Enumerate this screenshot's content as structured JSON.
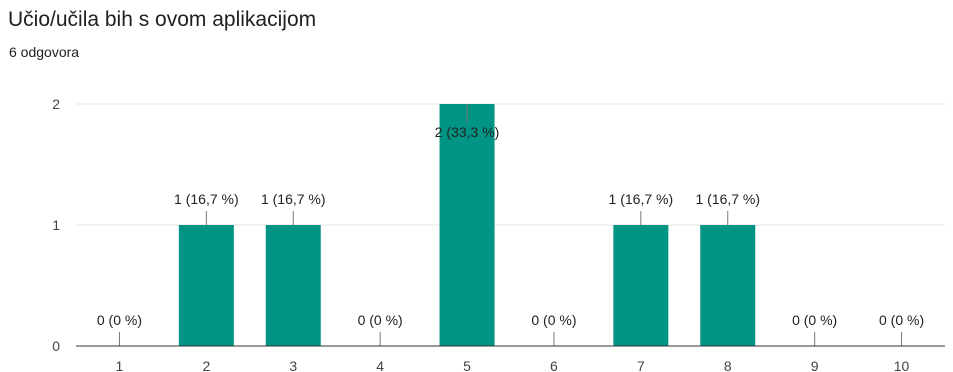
{
  "header": {
    "title": "Učio/učila bih s ovom aplikacijom",
    "subtitle": "6 odgovora"
  },
  "colors": {
    "bar": "#009485",
    "grid": "#e6e6e6",
    "baseline": "#333333"
  },
  "chart_data": {
    "type": "bar",
    "categories": [
      "1",
      "2",
      "3",
      "4",
      "5",
      "6",
      "7",
      "8",
      "9",
      "10"
    ],
    "values": [
      0,
      1,
      1,
      0,
      2,
      0,
      1,
      1,
      0,
      0
    ],
    "data_labels": [
      "0 (0 %)",
      "1 (16,7 %)",
      "1 (16,7 %)",
      "0 (0 %)",
      "2 (33,3 %)",
      "0 (0 %)",
      "1 (16,7 %)",
      "1 (16,7 %)",
      "0 (0 %)",
      "0 (0 %)"
    ],
    "y_ticks": [
      "0",
      "1",
      "2"
    ],
    "ylim": [
      0,
      2
    ],
    "grid": true,
    "title": "Učio/učila bih s ovom aplikacijom",
    "xlabel": "",
    "ylabel": ""
  }
}
